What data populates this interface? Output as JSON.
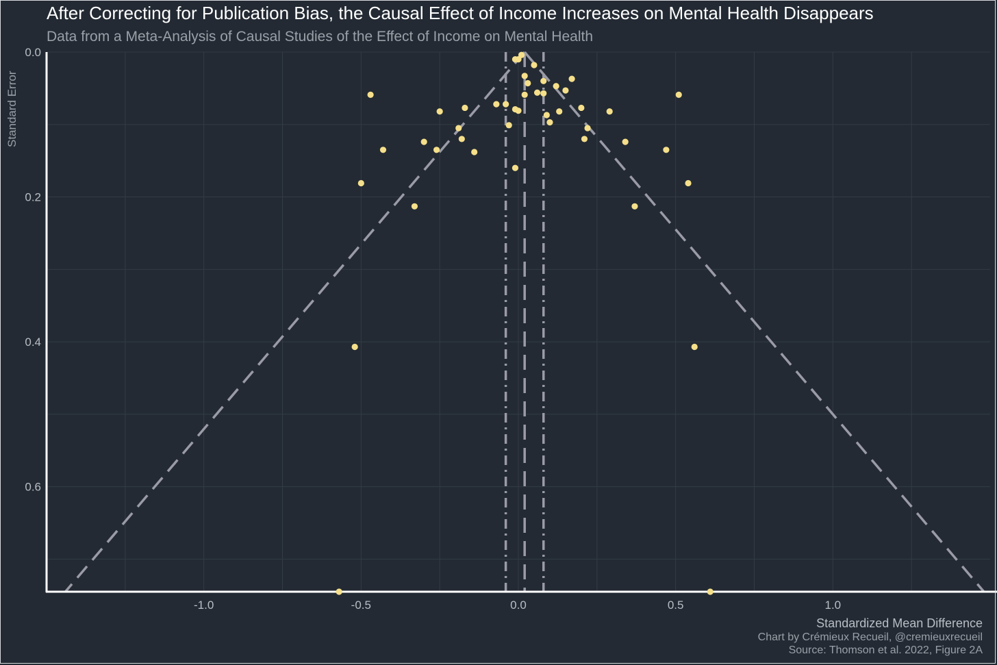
{
  "title": "After Correcting for Publication Bias, the Causal Effect of Income Increases on Mental Health Disappears",
  "subtitle": "Data from a Meta-Analysis of Causal Studies of the Effect of Income on Mental Health",
  "credit": "Chart by Crémieux Recueil, @cremieuxrecueil",
  "source": "Source: Thomson et al. 2022, Figure 2A",
  "colors": {
    "background": "#232a33",
    "points": "#f5df8a",
    "funnel_lines": "#9a9ba6",
    "grid": "#333b45",
    "axis": "#ffffff"
  },
  "chart_data": {
    "type": "scatter",
    "title": "After Correcting for Publication Bias, the Causal Effect of Income Increases on Mental Health Disappears",
    "subtitle": "Data from a Meta-Analysis of Causal Studies of the Effect of Income on Mental Health",
    "xlabel": "Standardized Mean Difference",
    "ylabel": "Standard Error",
    "xlim": [
      -1.5,
      1.5
    ],
    "ylim": [
      0,
      0.745
    ],
    "y_reversed": true,
    "xticks": [
      -1.0,
      -0.5,
      0.0,
      0.5,
      1.0
    ],
    "xtick_labels": [
      "-1.0",
      "-0.5",
      "0.0",
      "0.5",
      "1.0"
    ],
    "yticks": [
      0.0,
      0.2,
      0.4,
      0.6
    ],
    "ytick_labels": [
      "0.0",
      "0.2",
      "0.4",
      "0.6"
    ],
    "grid": true,
    "reference_lines": {
      "estimate": 0.02,
      "ci_lower": -0.04,
      "ci_upper": 0.08,
      "funnel_center": 0.02
    },
    "points": [
      {
        "x": 0.01,
        "y": 0.004
      },
      {
        "x": -0.01,
        "y": 0.01
      },
      {
        "x": 0.0,
        "y": 0.01
      },
      {
        "x": 0.05,
        "y": 0.018
      },
      {
        "x": 0.02,
        "y": 0.033
      },
      {
        "x": 0.03,
        "y": 0.043
      },
      {
        "x": 0.08,
        "y": 0.04
      },
      {
        "x": 0.17,
        "y": 0.037
      },
      {
        "x": 0.12,
        "y": 0.047
      },
      {
        "x": 0.15,
        "y": 0.053
      },
      {
        "x": 0.06,
        "y": 0.056
      },
      {
        "x": 0.08,
        "y": 0.057
      },
      {
        "x": 0.02,
        "y": 0.059
      },
      {
        "x": -0.47,
        "y": 0.059
      },
      {
        "x": 0.51,
        "y": 0.059
      },
      {
        "x": -0.07,
        "y": 0.072
      },
      {
        "x": -0.04,
        "y": 0.072
      },
      {
        "x": -0.17,
        "y": 0.077
      },
      {
        "x": 0.2,
        "y": 0.077
      },
      {
        "x": -0.01,
        "y": 0.079
      },
      {
        "x": 0.0,
        "y": 0.081
      },
      {
        "x": -0.25,
        "y": 0.082
      },
      {
        "x": 0.13,
        "y": 0.082
      },
      {
        "x": 0.29,
        "y": 0.082
      },
      {
        "x": 0.09,
        "y": 0.087
      },
      {
        "x": 0.1,
        "y": 0.097
      },
      {
        "x": -0.03,
        "y": 0.101
      },
      {
        "x": -0.19,
        "y": 0.105
      },
      {
        "x": 0.22,
        "y": 0.105
      },
      {
        "x": -0.18,
        "y": 0.12
      },
      {
        "x": 0.21,
        "y": 0.12
      },
      {
        "x": -0.3,
        "y": 0.124
      },
      {
        "x": 0.34,
        "y": 0.124
      },
      {
        "x": -0.43,
        "y": 0.135
      },
      {
        "x": -0.26,
        "y": 0.135
      },
      {
        "x": 0.47,
        "y": 0.135
      },
      {
        "x": -0.14,
        "y": 0.138
      },
      {
        "x": -0.01,
        "y": 0.16
      },
      {
        "x": -0.5,
        "y": 0.181
      },
      {
        "x": 0.54,
        "y": 0.181
      },
      {
        "x": -0.33,
        "y": 0.213
      },
      {
        "x": 0.37,
        "y": 0.213
      },
      {
        "x": -0.52,
        "y": 0.407
      },
      {
        "x": 0.56,
        "y": 0.407
      },
      {
        "x": -0.57,
        "y": 0.745
      },
      {
        "x": 0.61,
        "y": 0.745
      }
    ]
  }
}
